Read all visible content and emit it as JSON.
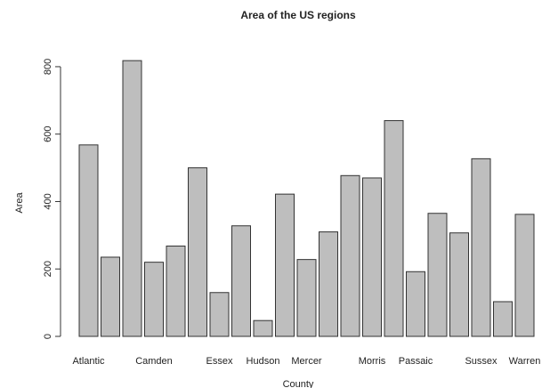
{
  "chart_data": {
    "type": "bar",
    "title": "Area of the US regions",
    "x_label": "County",
    "y_label": "Area",
    "categories": [
      "Atlantic",
      null,
      null,
      "Camden",
      null,
      null,
      "Essex",
      null,
      "Hudson",
      null,
      "Mercer",
      null,
      null,
      "Morris",
      null,
      "Passaic",
      null,
      null,
      "Sussex",
      null,
      "Warren"
    ],
    "values": [
      568,
      235,
      818,
      220,
      268,
      500,
      130,
      328,
      47,
      422,
      228,
      310,
      477,
      470,
      640,
      192,
      365,
      307,
      527,
      103,
      362
    ],
    "color": "#bebebe",
    "ylim": [
      0,
      850
    ],
    "yticks": [
      0,
      200,
      400,
      600,
      800
    ],
    "grid": false
  }
}
